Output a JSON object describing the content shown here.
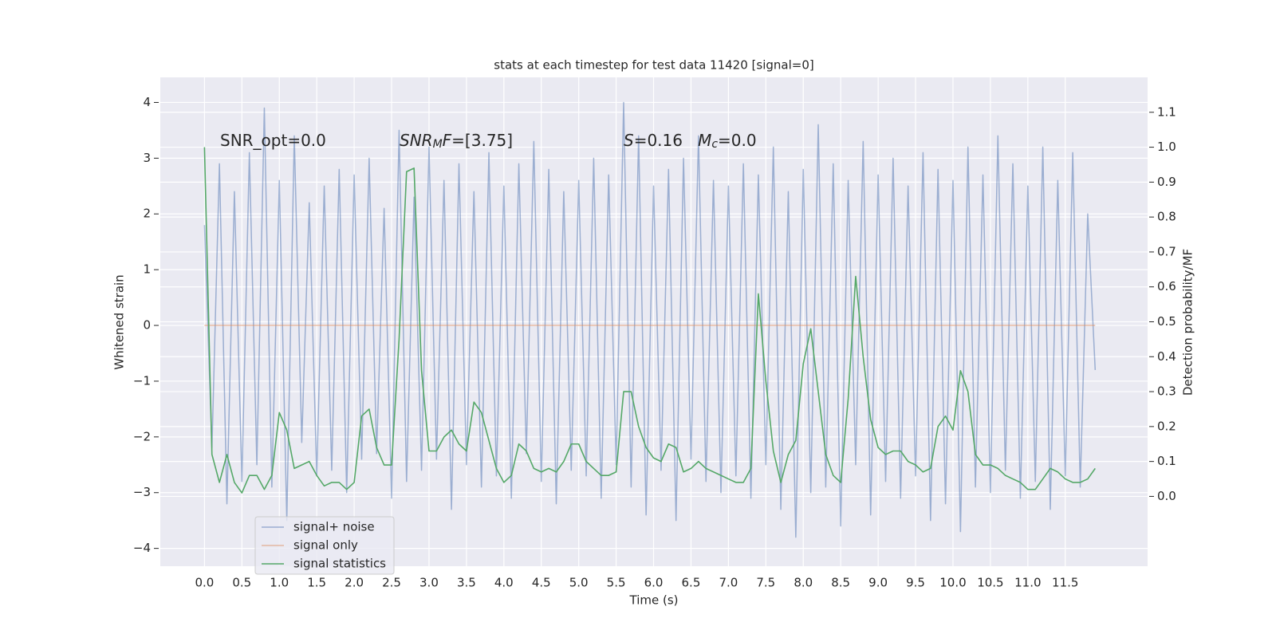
{
  "chart_data": {
    "type": "line",
    "title": "stats at each timestep for test data 11420 [signal=0]",
    "xlabel": "Time (s)",
    "ylabel": "Whitened strain",
    "y2label": "Detection probability/MF",
    "grid": true,
    "legend": "lower left",
    "xlim": [
      -0.59,
      12.6
    ],
    "ylim": [
      -4.32,
      4.45
    ],
    "y2lim": [
      -0.2,
      1.2
    ],
    "xticks": [
      {
        "value": 0,
        "label": "0.0"
      },
      0.5,
      {
        "value": 1,
        "label": "1.0"
      },
      1.5,
      {
        "value": 2,
        "label": "2.0"
      },
      2.5,
      {
        "value": 3,
        "label": "3.0"
      },
      3.5,
      {
        "value": 4,
        "label": "4.0"
      },
      4.5,
      {
        "value": 5,
        "label": "5.0"
      },
      5.5,
      {
        "value": 6,
        "label": "6.0"
      },
      6.5,
      {
        "value": 7,
        "label": "7.0"
      },
      7.5,
      {
        "value": 8,
        "label": "8.0"
      },
      8.5,
      {
        "value": 9,
        "label": "9.0"
      },
      9.5,
      {
        "value": 10,
        "label": "10.0"
      },
      10.5,
      {
        "value": 11,
        "label": "11.0"
      },
      11.5
    ],
    "yticks": [
      {
        "value": -4,
        "label": "−4"
      },
      {
        "value": -3,
        "label": "−3"
      },
      {
        "value": -2,
        "label": "−2"
      },
      {
        "value": -1,
        "label": "−1"
      },
      0,
      1,
      2,
      3,
      4
    ],
    "y2ticks": [
      {
        "value": 0,
        "label": "0.0"
      },
      0.1,
      0.2,
      0.3,
      0.4,
      0.5,
      0.6,
      0.7,
      0.8,
      0.9,
      {
        "value": 1,
        "label": "1.0"
      },
      1.1
    ],
    "annotations": [
      {
        "parts": [
          {
            "text": "SNR_opt=0.0",
            "italic": false,
            "sub": false
          }
        ]
      },
      {
        "parts": [
          {
            "text": "SNR",
            "italic": true,
            "sub": false
          },
          {
            "text": "M",
            "italic": true,
            "sub": true
          },
          {
            "text": "F",
            "italic": true,
            "sub": false
          },
          {
            "text": "=[3.75]",
            "italic": false,
            "sub": false
          }
        ]
      },
      {
        "parts": [
          {
            "text": "S",
            "italic": true,
            "sub": false
          },
          {
            "text": "=0.16   ",
            "italic": false,
            "sub": false
          },
          {
            "text": "M",
            "italic": true,
            "sub": false
          },
          {
            "text": "c",
            "italic": true,
            "sub": true
          },
          {
            "text": "=0.0",
            "italic": false,
            "sub": false
          }
        ]
      }
    ],
    "x": [
      0,
      0.1,
      0.2,
      0.3,
      0.4,
      0.5,
      0.6,
      0.7,
      0.8,
      0.9,
      1,
      1.1,
      1.2,
      1.3,
      1.4,
      1.5,
      1.6,
      1.7,
      1.8,
      1.9,
      2,
      2.1,
      2.2,
      2.3,
      2.4,
      2.5,
      2.6,
      2.7,
      2.8,
      2.9,
      3,
      3.1,
      3.2,
      3.3,
      3.4,
      3.5,
      3.6,
      3.7,
      3.8,
      3.9,
      4,
      4.1,
      4.2,
      4.3,
      4.4,
      4.5,
      4.6,
      4.7,
      4.8,
      4.9,
      5,
      5.1,
      5.2,
      5.3,
      5.4,
      5.5,
      5.6,
      5.7,
      5.8,
      5.9,
      6,
      6.1,
      6.2,
      6.3,
      6.4,
      6.5,
      6.6,
      6.7,
      6.8,
      6.9,
      7,
      7.1,
      7.2,
      7.3,
      7.4,
      7.5,
      7.6,
      7.7,
      7.8,
      7.9,
      8,
      8.1,
      8.2,
      8.3,
      8.4,
      8.5,
      8.6,
      8.7,
      8.8,
      8.9,
      9,
      9.1,
      9.2,
      9.3,
      9.4,
      9.5,
      9.6,
      9.7,
      9.8,
      9.9,
      10,
      10.1,
      10.2,
      10.3,
      10.4,
      10.5,
      10.6,
      10.7,
      10.8,
      10.9,
      11,
      11.1,
      11.2,
      11.3,
      11.4,
      11.5,
      11.6,
      11.7,
      11.8,
      11.9
    ],
    "series": [
      {
        "name": "signal+ noise",
        "color": "#4c72b0",
        "axis": "y",
        "values": [
          1.8,
          -2.2,
          2.9,
          -3.2,
          2.4,
          -2.8,
          3.1,
          -2.5,
          3.9,
          -2.9,
          2.6,
          -3.5,
          3.4,
          -2.1,
          2.2,
          -2.7,
          2.5,
          -2.6,
          2.8,
          -3.0,
          2.7,
          -2.4,
          3.0,
          -2.3,
          2.1,
          -3.1,
          3.5,
          -2.8,
          2.3,
          -2.6,
          3.2,
          -2.4,
          2.6,
          -3.3,
          2.9,
          -2.5,
          2.4,
          -2.9,
          3.1,
          -2.7,
          2.5,
          -3.1,
          2.9,
          -2.3,
          3.3,
          -2.8,
          2.8,
          -3.2,
          2.4,
          -2.6,
          2.6,
          -2.7,
          3.0,
          -3.1,
          2.7,
          -2.5,
          4.0,
          -2.9,
          3.4,
          -3.4,
          2.5,
          -2.6,
          2.8,
          -3.5,
          3.0,
          -2.4,
          3.4,
          -2.8,
          2.6,
          -3.0,
          2.5,
          -2.7,
          2.9,
          -3.1,
          2.7,
          -2.5,
          3.2,
          -3.3,
          2.4,
          -3.8,
          2.8,
          -3.0,
          3.6,
          -2.9,
          2.9,
          -3.6,
          2.6,
          -2.5,
          3.3,
          -3.4,
          2.7,
          -2.8,
          3.0,
          -3.1,
          2.5,
          -2.7,
          3.1,
          -3.5,
          2.8,
          -3.2,
          2.6,
          -3.7,
          3.2,
          -2.9,
          2.7,
          -3.0,
          3.4,
          -2.6,
          2.9,
          -3.1,
          2.5,
          -2.8,
          3.2,
          -3.3,
          2.6,
          -2.7,
          3.1,
          -2.9,
          2.0,
          -0.8
        ]
      },
      {
        "name": "signal only",
        "color": "#dd8452",
        "axis": "y",
        "values": [
          0,
          0,
          0,
          0,
          0,
          0,
          0,
          0,
          0,
          0,
          0,
          0,
          0,
          0,
          0,
          0,
          0,
          0,
          0,
          0,
          0,
          0,
          0,
          0,
          0,
          0,
          0,
          0,
          0,
          0,
          0,
          0,
          0,
          0,
          0,
          0,
          0,
          0,
          0,
          0,
          0,
          0,
          0,
          0,
          0,
          0,
          0,
          0,
          0,
          0,
          0,
          0,
          0,
          0,
          0,
          0,
          0,
          0,
          0,
          0,
          0,
          0,
          0,
          0,
          0,
          0,
          0,
          0,
          0,
          0,
          0,
          0,
          0,
          0,
          0,
          0,
          0,
          0,
          0,
          0,
          0,
          0,
          0,
          0,
          0,
          0,
          0,
          0,
          0,
          0,
          0,
          0,
          0,
          0,
          0,
          0,
          0,
          0,
          0,
          0,
          0,
          0,
          0,
          0,
          0,
          0,
          0,
          0,
          0,
          0,
          0,
          0,
          0,
          0,
          0,
          0,
          0,
          0,
          0,
          0
        ]
      },
      {
        "name": "signal statistics",
        "color": "#55a868",
        "axis": "y2",
        "values": [
          1.0,
          0.12,
          0.04,
          0.12,
          0.04,
          0.01,
          0.06,
          0.06,
          0.02,
          0.06,
          0.24,
          0.19,
          0.08,
          0.09,
          0.1,
          0.06,
          0.03,
          0.04,
          0.04,
          0.02,
          0.04,
          0.23,
          0.25,
          0.14,
          0.09,
          0.09,
          0.45,
          0.93,
          0.94,
          0.36,
          0.13,
          0.13,
          0.17,
          0.19,
          0.15,
          0.13,
          0.27,
          0.24,
          0.16,
          0.08,
          0.04,
          0.06,
          0.15,
          0.13,
          0.08,
          0.07,
          0.08,
          0.07,
          0.1,
          0.15,
          0.15,
          0.1,
          0.08,
          0.06,
          0.06,
          0.07,
          0.3,
          0.3,
          0.2,
          0.14,
          0.11,
          0.1,
          0.15,
          0.14,
          0.07,
          0.08,
          0.1,
          0.08,
          0.07,
          0.06,
          0.05,
          0.04,
          0.04,
          0.08,
          0.58,
          0.33,
          0.13,
          0.04,
          0.12,
          0.16,
          0.38,
          0.48,
          0.3,
          0.12,
          0.06,
          0.04,
          0.28,
          0.63,
          0.4,
          0.22,
          0.14,
          0.12,
          0.13,
          0.13,
          0.1,
          0.09,
          0.07,
          0.08,
          0.2,
          0.23,
          0.19,
          0.36,
          0.3,
          0.12,
          0.09,
          0.09,
          0.08,
          0.06,
          0.05,
          0.04,
          0.02,
          0.02,
          0.05,
          0.08,
          0.07,
          0.05,
          0.04,
          0.04,
          0.05,
          0.08
        ]
      }
    ]
  }
}
